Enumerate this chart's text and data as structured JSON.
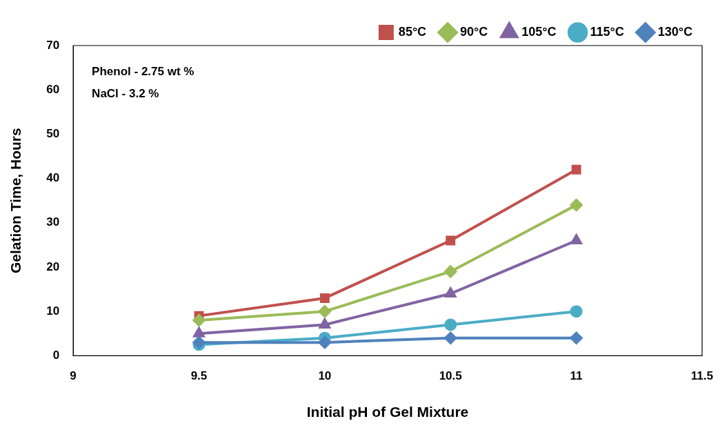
{
  "chart_data": {
    "type": "line",
    "xlabel": "Initial pH of Gel Mixture",
    "ylabel": "Gelation Time, Hours",
    "x": [
      9.5,
      10,
      10.5,
      11
    ],
    "series": [
      {
        "name": "85°C",
        "color": "#c0504d",
        "marker": "square",
        "values": [
          9,
          13,
          26,
          42
        ]
      },
      {
        "name": "90°C",
        "color": "#9bbb59",
        "marker": "diamond",
        "values": [
          8,
          10,
          19,
          34
        ]
      },
      {
        "name": "105°C",
        "color": "#8064a2",
        "marker": "triangle",
        "values": [
          5,
          7,
          14,
          26
        ]
      },
      {
        "name": "115°C",
        "color": "#4bacc6",
        "marker": "circle",
        "values": [
          2.5,
          4,
          7,
          10
        ]
      },
      {
        "name": "130°C",
        "color": "#4f81bd",
        "marker": "diamond",
        "values": [
          3,
          3,
          4,
          4
        ]
      }
    ],
    "xlim": [
      9,
      11.5
    ],
    "xticks": [
      9,
      9.5,
      10,
      10.5,
      11,
      11.5
    ],
    "ylim": [
      0,
      70
    ],
    "yticks": [
      0,
      10,
      20,
      30,
      40,
      50,
      60,
      70
    ],
    "annotations": [
      "Phenol - 2.75 wt %",
      "NaCl - 3.2 %"
    ],
    "grid": false,
    "legend": "top",
    "line_style": "solid"
  }
}
